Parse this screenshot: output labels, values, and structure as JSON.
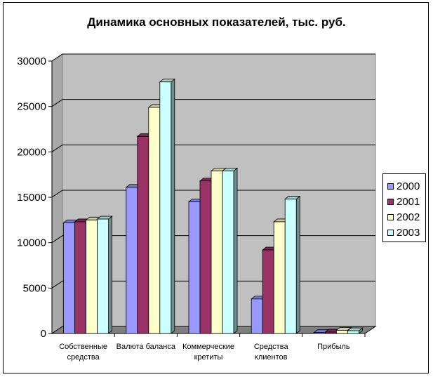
{
  "chart_data": {
    "type": "bar",
    "title": "Динамика основных показателей, тыс. руб.",
    "categories": [
      [
        "Собственные",
        "средства"
      ],
      [
        "Валюта баланса"
      ],
      [
        "Коммерческие",
        "кретиты"
      ],
      [
        "Средства",
        "клиентов"
      ],
      [
        "Прибыль"
      ]
    ],
    "series": [
      {
        "name": "2000",
        "color": "#9999FF",
        "values": [
          12200,
          16100,
          14500,
          3800,
          100
        ]
      },
      {
        "name": "2001",
        "color": "#993366",
        "values": [
          12300,
          21700,
          16800,
          9200,
          150
        ]
      },
      {
        "name": "2002",
        "color": "#FFFFCC",
        "values": [
          12500,
          24900,
          17900,
          12300,
          350
        ]
      },
      {
        "name": "2003",
        "color": "#CCFFFF",
        "values": [
          12600,
          27700,
          17900,
          14800,
          300
        ]
      }
    ],
    "ylim": [
      0,
      30000
    ],
    "yticks": [
      0,
      5000,
      10000,
      15000,
      20000,
      25000,
      30000
    ],
    "grid": true,
    "legend_position": "right",
    "wall_color": "#C0C0C0",
    "floor_color": "#808080"
  }
}
